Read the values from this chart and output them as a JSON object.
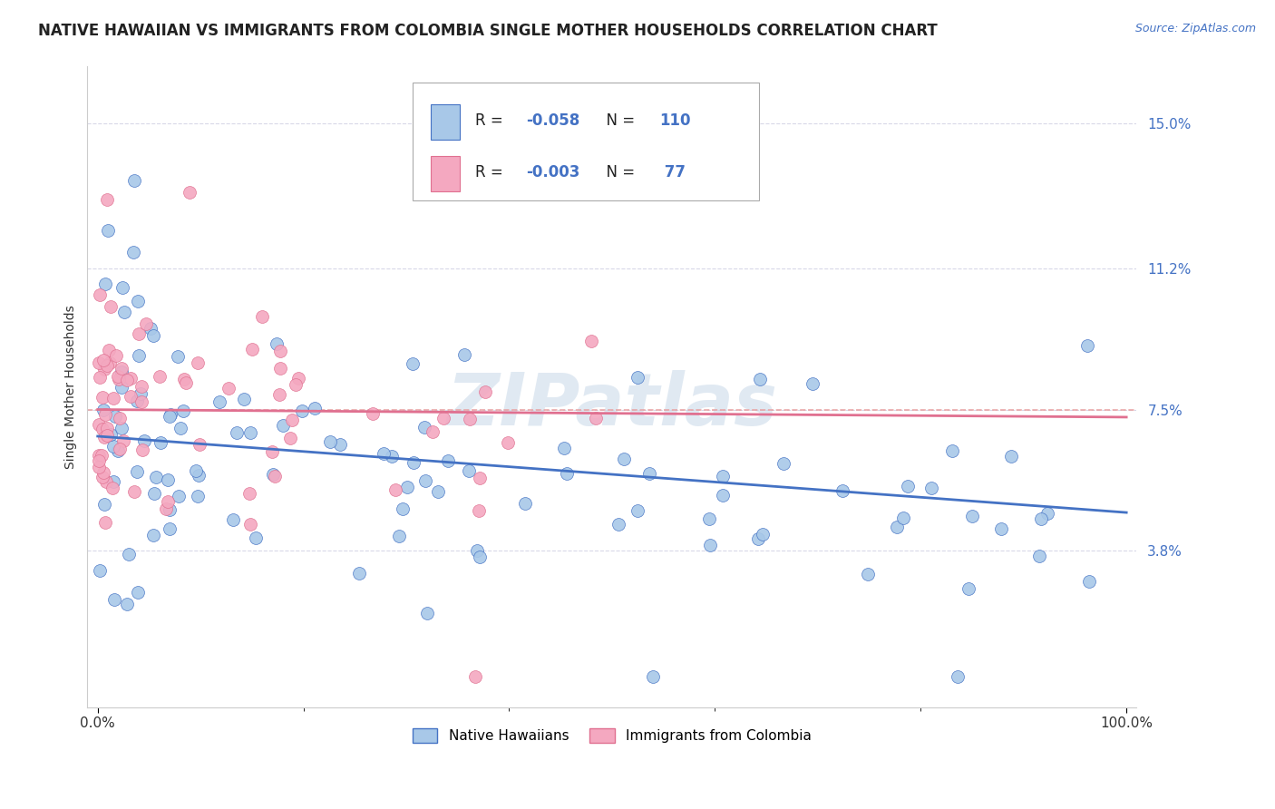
{
  "title": "NATIVE HAWAIIAN VS IMMIGRANTS FROM COLOMBIA SINGLE MOTHER HOUSEHOLDS CORRELATION CHART",
  "source": "Source: ZipAtlas.com",
  "ylabel": "Single Mother Households",
  "legend_label1": "Native Hawaiians",
  "legend_label2": "Immigrants from Colombia",
  "R1": -0.058,
  "N1": 110,
  "R2": -0.003,
  "N2": 77,
  "color1": "#a8c8e8",
  "color2": "#f4a8c0",
  "line_color1": "#4472c4",
  "line_color2": "#e07090",
  "dashed_line_y": 7.5,
  "dashed_color": "#e8a0a0",
  "grid_color": "#d8d8e8",
  "background_color": "#ffffff",
  "watermark": "ZIPatlas",
  "title_fontsize": 12,
  "axis_label_fontsize": 10,
  "tick_fontsize": 11,
  "ytick_vals": [
    3.8,
    7.5,
    11.2,
    15.0
  ],
  "ytick_labels": [
    "3.8%",
    "7.5%",
    "11.2%",
    "15.0%"
  ],
  "xlim": [
    -1,
    101
  ],
  "ylim": [
    -0.3,
    16.5
  ],
  "line1_start_y": 6.8,
  "line1_end_y": 4.8,
  "line2_start_y": 7.5,
  "line2_end_y": 7.3
}
